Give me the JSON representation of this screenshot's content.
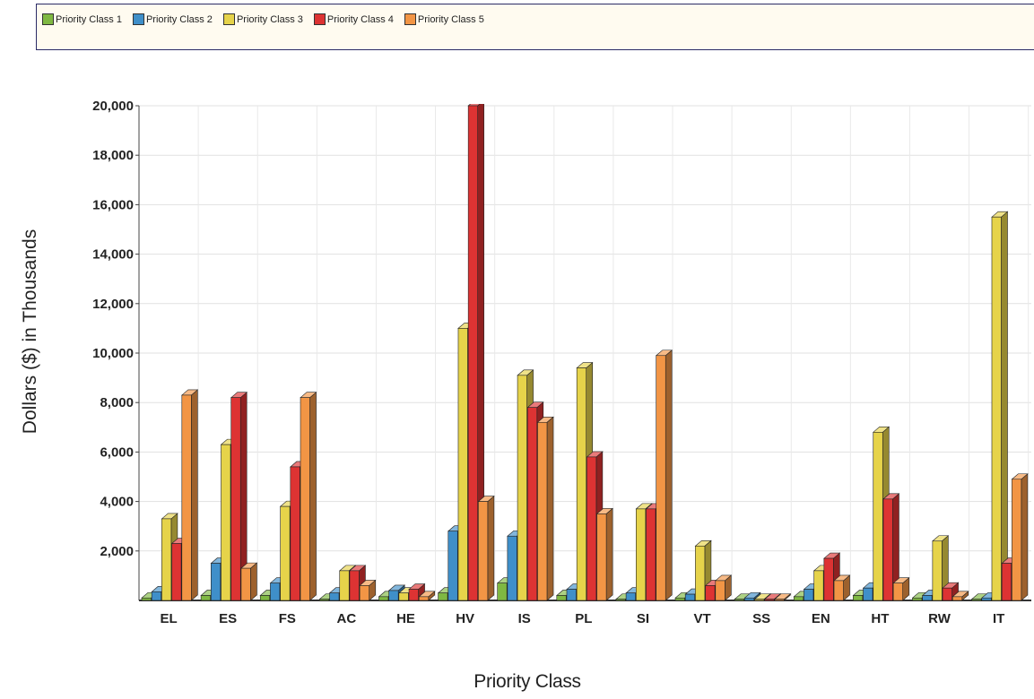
{
  "chart_data": {
    "type": "bar",
    "style": "3d-clustered",
    "categories": [
      "EL",
      "ES",
      "FS",
      "AC",
      "HE",
      "HV",
      "IS",
      "PL",
      "SI",
      "VT",
      "SS",
      "EN",
      "HT",
      "RW",
      "IT"
    ],
    "series": [
      {
        "name": "Priority Class 1",
        "color": "#7fb842",
        "values": [
          100,
          200,
          200,
          50,
          150,
          300,
          700,
          200,
          50,
          100,
          50,
          150,
          200,
          100,
          50
        ]
      },
      {
        "name": "Priority Class 2",
        "color": "#3f8fc9",
        "values": [
          350,
          1500,
          700,
          300,
          400,
          2800,
          2600,
          450,
          300,
          250,
          100,
          450,
          500,
          200,
          100
        ]
      },
      {
        "name": "Priority Class 3",
        "color": "#e6d34a",
        "values": [
          3300,
          6300,
          3800,
          1200,
          300,
          11000,
          9100,
          9400,
          3700,
          2200,
          50,
          1200,
          6800,
          2400,
          15500
        ]
      },
      {
        "name": "Priority Class 4",
        "color": "#dd3333",
        "values": [
          2300,
          8200,
          5400,
          1200,
          450,
          20000,
          7800,
          5800,
          3700,
          600,
          50,
          1700,
          4100,
          500,
          1500
        ]
      },
      {
        "name": "Priority Class 5",
        "color": "#f29545",
        "values": [
          8300,
          1300,
          8200,
          600,
          150,
          4000,
          7200,
          3500,
          9900,
          800,
          50,
          800,
          700,
          150,
          4900
        ]
      }
    ],
    "ylim": [
      0,
      20000
    ],
    "yticks": [
      "2,000",
      "4,000",
      "6,000",
      "8,000",
      "10,000",
      "12,000",
      "14,000",
      "16,000",
      "18,000",
      "20,000"
    ],
    "ytick_values": [
      2000,
      4000,
      6000,
      8000,
      10000,
      12000,
      14000,
      16000,
      18000,
      20000
    ],
    "xlabel": "Priority Class",
    "ylabel": "Dollars ($) in Thousands",
    "legend_position": "top",
    "grid": true
  }
}
